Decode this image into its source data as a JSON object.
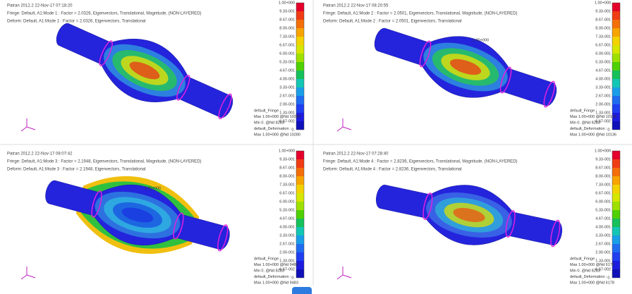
{
  "panels": [
    {
      "header": [
        "Patran 2012.2 22-Nov-17 07:18:20",
        "Fringe: Default, A1:Mode 1 : Factor = 2.0326, Eigenvectors, Translational, Magnitude, (NON-LAYERED)",
        "Deform: Default, A1:Mode 1 : Factor = 2.0326, Eigenvectors, Translational"
      ],
      "legend_labels": [
        "1.00+000",
        "9.33-001",
        "8.67-001",
        "8.00-001",
        "7.33-001",
        "6.67-001",
        "6.00-001",
        "5.33-001",
        "4.67-001",
        "4.00-001",
        "3.33-001",
        "2.67-001",
        "2.00-001",
        "1.33-001",
        "6.67-002",
        "0."
      ],
      "footer": [
        "default_Fringe :",
        "Max 1.00+000 @Nd 10280",
        "Min 0. @Nd 8283",
        "default_Deformation :",
        "Max 1.00+000 @Nd 10280"
      ]
    },
    {
      "header": [
        "Patran 2012.2 22-Nov-17 08:20:55",
        "Fringe: Default, A1:Mode 2 : Factor = 2.0501, Eigenvectors, Translational, Magnitude, (NON-LAYERED)",
        "Deform: Default, A1:Mode 2 : Factor = 2.0501, Eigenvectors, Translational"
      ],
      "legend_labels": [
        "1.00+000",
        "9.33-001",
        "8.67-001",
        "8.00-001",
        "7.33-001",
        "6.67-001",
        "6.00-001",
        "5.33-001",
        "4.67-001",
        "4.00-001",
        "3.33-001",
        "2.67-001",
        "2.00-001",
        "1.33-001",
        "6.67-002",
        "0."
      ],
      "annotation": "1.00+000",
      "footer": [
        "default_Fringe :",
        "Max 1.00+000 @Nd 10136",
        "Min 0. @Nd 8283",
        "default_Deformation :",
        "Max 1.00+000 @Nd 10136"
      ]
    },
    {
      "header": [
        "Patran 2012.2 22-Nov-17 08:07:42",
        "Fringe: Default, A1:Mode 3 : Factor = 2.1948, Eigenvectors, Translational, Magnitude, (NON-LAYERED)",
        "Deform: Default, A1:Mode 3 : Factor = 2.1948, Eigenvectors, Translational"
      ],
      "legend_labels": [
        "1.00+000",
        "9.33-001",
        "8.67-001",
        "8.00-001",
        "7.33-001",
        "6.67-001",
        "6.00-001",
        "5.33-001",
        "4.67-001",
        "4.00-001",
        "3.33-001",
        "2.67-001",
        "2.00-001",
        "1.33-001",
        "6.67-002",
        "0."
      ],
      "annotation": "1.00+000",
      "footer": [
        "default_Fringe :",
        "Max 1.00+000 @Nd 9483",
        "Min 0. @Nd 8283",
        "default_Deformation :",
        "Max 1.00+000 @Nd 9483"
      ]
    },
    {
      "header": [
        "Patran 2012.2 22-Nov-17 07:28:40",
        "Fringe: Default, A1:Mode 4 : Factor = 2.8236, Eigenvectors, Translational, Magnitude, (NON-LAYERED)",
        "Deform: Default, A1:Mode 4 : Factor = 2.8236, Eigenvectors, Translational"
      ],
      "legend_labels": [
        "1.00+000",
        "9.33-001",
        "8.67-001",
        "8.00-001",
        "7.33-001",
        "6.67-001",
        "6.00-001",
        "5.33-001",
        "4.67-001",
        "4.00-001",
        "3.33-001",
        "2.67-001",
        "2.00-001",
        "1.33-001",
        "6.67-002",
        "0."
      ],
      "footer": [
        "default_Fringe :",
        "Max 1.00+000 @Nd 6178",
        "Min 0. @Nd 8283",
        "default_Deformation :",
        "Max 1.00+000 @Nd 6178"
      ]
    }
  ]
}
